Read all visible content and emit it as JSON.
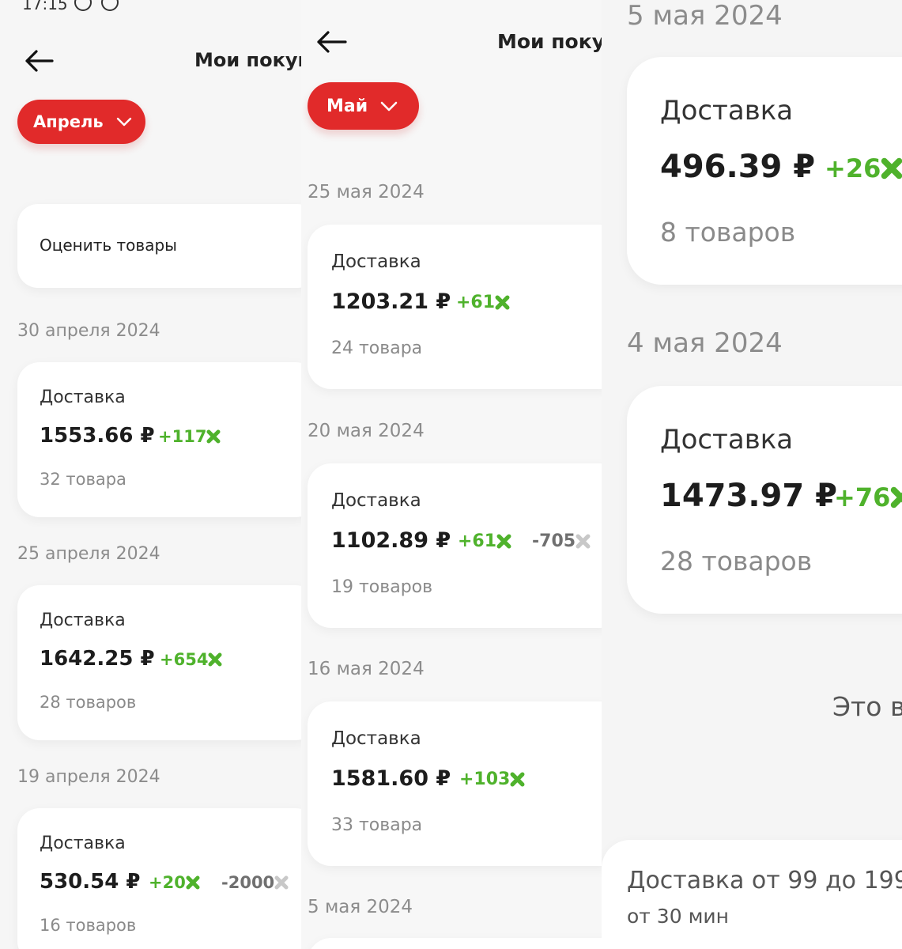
{
  "panel1": {
    "status_time": "17:15",
    "header_title": "Мои покупки",
    "month": "Апрель",
    "rate_items": "Оценить товары",
    "orders": [
      {
        "date": "30 апреля 2024",
        "type": "Доставка",
        "price": "1553.66 ₽",
        "bonus": "+117",
        "items": "32 товара"
      },
      {
        "date": "25 апреля 2024",
        "type": "Доставка",
        "price": "1642.25 ₽",
        "bonus": "+654",
        "items": "28 товаров"
      },
      {
        "date": "19 апреля 2024",
        "type": "Доставка",
        "price": "530.54 ₽",
        "bonus": "+20",
        "spent": "-2000",
        "items": "16 товаров"
      }
    ]
  },
  "panel2": {
    "header_title": "Мои покупки",
    "month": "Май",
    "orders": [
      {
        "date": "25 мая 2024",
        "type": "Доставка",
        "price": "1203.21 ₽",
        "bonus": "+61",
        "items": "24 товара"
      },
      {
        "date": "20 мая 2024",
        "type": "Доставка",
        "price": "1102.89 ₽",
        "bonus": "+61",
        "spent": "-705",
        "items": "19 товаров"
      },
      {
        "date": "16 мая 2024",
        "type": "Доставка",
        "price": "1581.60 ₽",
        "bonus": "+103",
        "items": "33 товара"
      }
    ],
    "last_date": "5 мая 2024"
  },
  "panel3": {
    "top_date": "5 мая 2024",
    "orders": [
      {
        "type": "Доставка",
        "price": "496.39 ₽",
        "bonus": "+26",
        "items": "8 товаров"
      },
      {
        "date": "4 мая 2024",
        "type": "Доставка",
        "price": "1473.97 ₽",
        "bonus": "+76",
        "items": "28 товаров"
      }
    ],
    "end_text": "Это в",
    "delivery_banner": {
      "title": "Доставка от 99 до 199",
      "subtitle": "от 30 мин"
    }
  },
  "colors": {
    "accent": "#e12a2a",
    "bonus": "#4fb22c",
    "spent_icon": "#c8c8c8"
  },
  "icons": {
    "back": "arrow-left-icon",
    "chevron": "chevron-down-icon",
    "bonus": "bonus-x-icon",
    "status": [
      "whatsapp-icon",
      "check-circle-icon"
    ]
  }
}
